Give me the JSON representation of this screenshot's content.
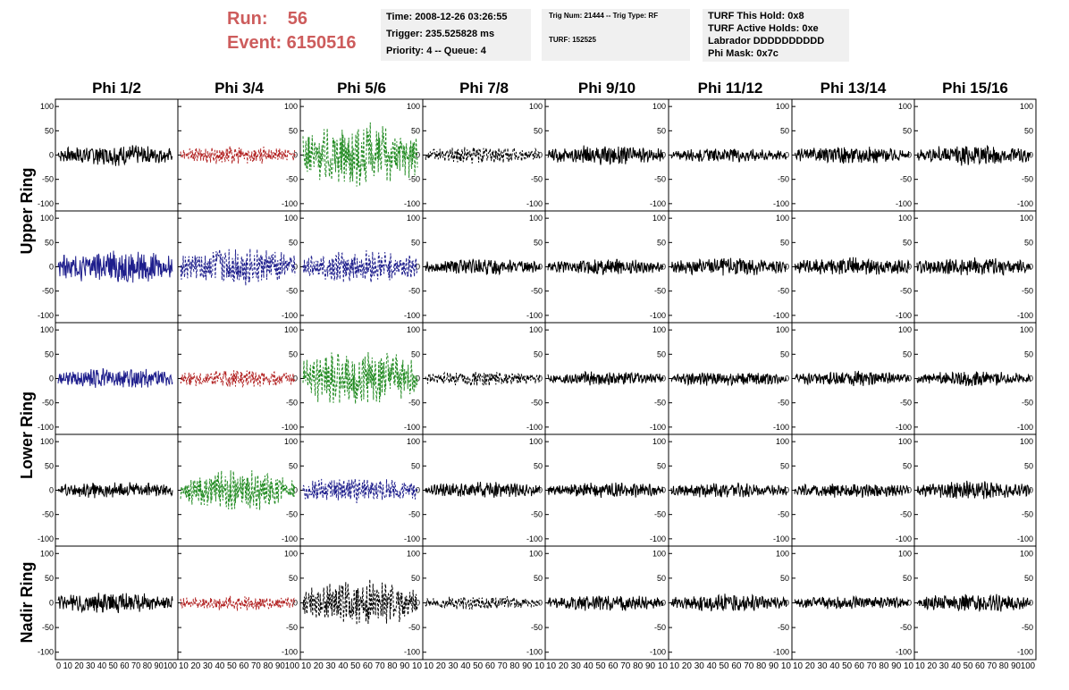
{
  "header": {
    "run": "Run:    56",
    "event": "Event: 6150516",
    "box1": [
      "Time: 2008-12-26 03:26:55",
      "Trigger: 235.525828 ms",
      "Priority: 4 -- Queue: 4"
    ],
    "box2": [
      "Trig Num: 21444 -- Trig Type: RF",
      "TURF: 152525"
    ],
    "box3": [
      "TURF This Hold: 0x8",
      "TURF Active Holds: 0xe",
      "Labrador DDDDDDDDDD",
      "Phi Mask: 0x7c"
    ]
  },
  "chart_data": {
    "type": "line",
    "columns": [
      "Phi 1/2",
      "Phi 3/4",
      "Phi 5/6",
      "Phi 7/8",
      "Phi 9/10",
      "Phi 11/12",
      "Phi 13/14",
      "Phi 15/16"
    ],
    "rows": [
      "Upper Ring",
      "Lower Ring",
      "Nadir Ring"
    ],
    "xlim": [
      0,
      100
    ],
    "ylim": [
      -115,
      115
    ],
    "yticks": [
      -100,
      -50,
      0,
      50,
      100
    ],
    "xticks_text": [
      "0 10 20 30 40 50 60 70 80 90100",
      "10 20 30 40 50 60 70 80 90100",
      "10 20 30 40 50 60 70 80 90 10",
      "10 20 30 40 50 60 70 80 90 10",
      "10 20 30 40 50 60 70 80 90 10",
      "10 20 30 40 50 60 70 80 90 10",
      "10 20 30 40 50 60 70 80 90 10",
      "10 20 30 40 50 60 70 80 90100"
    ],
    "colors": {
      "black": "#000000",
      "red": "#b22222",
      "green": "#228b22",
      "blue": "#1e1e8c"
    },
    "panels": [
      {
        "row": 0,
        "col": 0,
        "color": "black",
        "amp": 18,
        "dashed": false
      },
      {
        "row": 0,
        "col": 1,
        "color": "red",
        "amp": 16,
        "dashed": true
      },
      {
        "row": 0,
        "col": 2,
        "color": "green",
        "amp": 55,
        "dashed": true
      },
      {
        "row": 0,
        "col": 3,
        "color": "black",
        "amp": 15,
        "dashed": true
      },
      {
        "row": 0,
        "col": 4,
        "color": "black",
        "amp": 17,
        "dashed": false
      },
      {
        "row": 0,
        "col": 5,
        "color": "black",
        "amp": 12,
        "dashed": false
      },
      {
        "row": 0,
        "col": 6,
        "color": "black",
        "amp": 15,
        "dashed": false
      },
      {
        "row": 0,
        "col": 7,
        "color": "black",
        "amp": 18,
        "dashed": false
      },
      {
        "row": 1,
        "col": 0,
        "color": "blue",
        "amp": 30,
        "dashed": false
      },
      {
        "row": 1,
        "col": 1,
        "color": "blue",
        "amp": 35,
        "dashed": true
      },
      {
        "row": 1,
        "col": 2,
        "color": "blue",
        "amp": 28,
        "dashed": true
      },
      {
        "row": 1,
        "col": 3,
        "color": "black",
        "amp": 14,
        "dashed": false
      },
      {
        "row": 1,
        "col": 4,
        "color": "black",
        "amp": 14,
        "dashed": false
      },
      {
        "row": 1,
        "col": 5,
        "color": "black",
        "amp": 16,
        "dashed": false
      },
      {
        "row": 1,
        "col": 6,
        "color": "black",
        "amp": 16,
        "dashed": false
      },
      {
        "row": 1,
        "col": 7,
        "color": "black",
        "amp": 16,
        "dashed": false
      },
      {
        "row": 2,
        "col": 0,
        "color": "blue",
        "amp": 18,
        "dashed": false
      },
      {
        "row": 2,
        "col": 1,
        "color": "red",
        "amp": 16,
        "dashed": true
      },
      {
        "row": 2,
        "col": 2,
        "color": "green",
        "amp": 50,
        "dashed": true
      },
      {
        "row": 2,
        "col": 3,
        "color": "black",
        "amp": 13,
        "dashed": true
      },
      {
        "row": 2,
        "col": 4,
        "color": "black",
        "amp": 12,
        "dashed": false
      },
      {
        "row": 2,
        "col": 5,
        "color": "black",
        "amp": 13,
        "dashed": false
      },
      {
        "row": 2,
        "col": 6,
        "color": "black",
        "amp": 13,
        "dashed": false
      },
      {
        "row": 2,
        "col": 7,
        "color": "black",
        "amp": 13,
        "dashed": false
      },
      {
        "row": 3,
        "col": 0,
        "color": "black",
        "amp": 14,
        "dashed": false
      },
      {
        "row": 3,
        "col": 1,
        "color": "green",
        "amp": 35,
        "dashed": true
      },
      {
        "row": 3,
        "col": 2,
        "color": "blue",
        "amp": 24,
        "dashed": true
      },
      {
        "row": 3,
        "col": 3,
        "color": "black",
        "amp": 14,
        "dashed": false
      },
      {
        "row": 3,
        "col": 4,
        "color": "black",
        "amp": 14,
        "dashed": false
      },
      {
        "row": 3,
        "col": 5,
        "color": "black",
        "amp": 13,
        "dashed": false
      },
      {
        "row": 3,
        "col": 6,
        "color": "black",
        "amp": 13,
        "dashed": false
      },
      {
        "row": 3,
        "col": 7,
        "color": "black",
        "amp": 16,
        "dashed": false
      },
      {
        "row": 4,
        "col": 0,
        "color": "black",
        "amp": 18,
        "dashed": false
      },
      {
        "row": 4,
        "col": 1,
        "color": "red",
        "amp": 13,
        "dashed": true
      },
      {
        "row": 4,
        "col": 2,
        "color": "black",
        "amp": 40,
        "dashed": true
      },
      {
        "row": 4,
        "col": 3,
        "color": "black",
        "amp": 12,
        "dashed": true
      },
      {
        "row": 4,
        "col": 4,
        "color": "black",
        "amp": 14,
        "dashed": false
      },
      {
        "row": 4,
        "col": 5,
        "color": "black",
        "amp": 15,
        "dashed": false
      },
      {
        "row": 4,
        "col": 6,
        "color": "black",
        "amp": 12,
        "dashed": false
      },
      {
        "row": 4,
        "col": 7,
        "color": "black",
        "amp": 16,
        "dashed": false
      }
    ]
  }
}
